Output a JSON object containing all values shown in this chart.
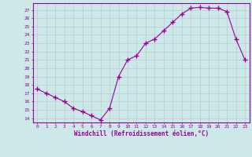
{
  "x": [
    0,
    1,
    2,
    3,
    4,
    5,
    6,
    7,
    8,
    9,
    10,
    11,
    12,
    13,
    14,
    15,
    16,
    17,
    18,
    19,
    20,
    21,
    22,
    23
  ],
  "y": [
    17.5,
    17.0,
    16.5,
    16.0,
    15.2,
    14.8,
    14.3,
    13.8,
    15.2,
    19.0,
    21.0,
    21.5,
    23.0,
    23.5,
    24.5,
    25.5,
    26.5,
    27.2,
    27.3,
    27.2,
    27.2,
    26.8,
    23.5,
    21.0
  ],
  "xlim": [
    -0.5,
    23.5
  ],
  "ylim": [
    13.5,
    27.8
  ],
  "yticks": [
    14,
    15,
    16,
    17,
    18,
    19,
    20,
    21,
    22,
    23,
    24,
    25,
    26,
    27
  ],
  "xticks": [
    0,
    1,
    2,
    3,
    4,
    5,
    6,
    7,
    8,
    9,
    10,
    11,
    12,
    13,
    14,
    15,
    16,
    17,
    18,
    19,
    20,
    21,
    22,
    23
  ],
  "xlabel": "Windchill (Refroidissement éolien,°C)",
  "line_color": "#990099",
  "marker_color": "#990099",
  "bg_color": "#cce8e8",
  "grid_color": "#bbcccc",
  "axis_label_color": "#990099",
  "tick_label_color": "#990099",
  "spine_color": "#990099"
}
